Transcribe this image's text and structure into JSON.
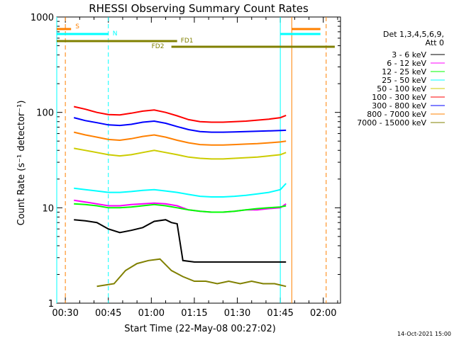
{
  "chart_data": {
    "type": "line",
    "title": "RHESSI Observing Summary Count Rates",
    "xlabel": "Start Time (22-May-08 00:27:02)",
    "ylabel": "Count Rate (s⁻¹ detector⁻¹)",
    "y_scale": "log",
    "ylim": [
      1,
      1000
    ],
    "xlim_minutes_from_start": [
      0,
      99
    ],
    "x_ticks": [
      {
        "label": "00:30",
        "minutes": 3
      },
      {
        "label": "00:45",
        "minutes": 18
      },
      {
        "label": "01:00",
        "minutes": 33
      },
      {
        "label": "01:15",
        "minutes": 48
      },
      {
        "label": "01:30",
        "minutes": 63
      },
      {
        "label": "01:45",
        "minutes": 78
      },
      {
        "label": "02:00",
        "minutes": 93
      }
    ],
    "y_ticks": [
      {
        "label": "1",
        "value": 1
      },
      {
        "label": "10",
        "value": 10
      },
      {
        "label": "100",
        "value": 100
      },
      {
        "label": "1000",
        "value": 1000
      }
    ],
    "legend_header": [
      "Det 1,3,4,5,6,9,",
      "Att 0"
    ],
    "legend_position": "right",
    "series": [
      {
        "name": "3 - 6 keV",
        "color": "#000000",
        "x": [
          6,
          10,
          14,
          18,
          22,
          26,
          30,
          34,
          38,
          40,
          42,
          44,
          48,
          52,
          56,
          60,
          64,
          68,
          72,
          76,
          78,
          80
        ],
        "y": [
          7.5,
          7.3,
          7.0,
          6.0,
          5.5,
          5.8,
          6.2,
          7.2,
          7.5,
          7.0,
          6.8,
          2.8,
          2.7,
          2.7,
          2.7,
          2.7,
          2.7,
          2.7,
          2.7,
          2.7,
          2.7,
          2.7
        ]
      },
      {
        "name": "6 - 12 keV",
        "color": "#ff00ff",
        "x": [
          6,
          10,
          14,
          18,
          22,
          26,
          30,
          34,
          38,
          42,
          46,
          50,
          54,
          58,
          62,
          66,
          70,
          74,
          78,
          80
        ],
        "y": [
          12,
          11.5,
          11,
          10.5,
          10.5,
          10.8,
          11,
          11.2,
          11,
          10.5,
          9.5,
          9.2,
          9.0,
          9.0,
          9.2,
          9.5,
          9.5,
          9.8,
          10,
          11
        ]
      },
      {
        "name": "12 - 25 keV",
        "color": "#00ff00",
        "x": [
          6,
          10,
          14,
          18,
          22,
          26,
          30,
          34,
          38,
          42,
          46,
          50,
          54,
          58,
          62,
          66,
          70,
          74,
          78,
          80
        ],
        "y": [
          11,
          10.8,
          10.5,
          10,
          10,
          10.2,
          10.5,
          10.8,
          10.5,
          10,
          9.5,
          9.2,
          9,
          9,
          9.2,
          9.5,
          9.8,
          10,
          10.2,
          10.5
        ]
      },
      {
        "name": "25 - 50 keV",
        "color": "#00ffff",
        "x": [
          6,
          10,
          14,
          18,
          22,
          26,
          30,
          34,
          38,
          42,
          46,
          50,
          54,
          58,
          62,
          66,
          70,
          74,
          78,
          80
        ],
        "y": [
          16,
          15.5,
          15,
          14.5,
          14.5,
          14.8,
          15.2,
          15.5,
          15,
          14.5,
          13.8,
          13.2,
          13,
          13,
          13.2,
          13.5,
          14,
          14.5,
          15.5,
          18
        ]
      },
      {
        "name": "50 - 100 keV",
        "color": "#cccc00",
        "x": [
          6,
          10,
          14,
          18,
          22,
          26,
          30,
          34,
          38,
          42,
          46,
          50,
          54,
          58,
          62,
          66,
          70,
          74,
          78,
          80
        ],
        "y": [
          42,
          40,
          38,
          36,
          35,
          36,
          38,
          40,
          38,
          36,
          34,
          33,
          32.5,
          32.5,
          33,
          33.5,
          34,
          35,
          36,
          38
        ]
      },
      {
        "name": "100 - 300 keV",
        "color": "#ff0000",
        "x": [
          6,
          10,
          14,
          18,
          22,
          26,
          30,
          34,
          38,
          42,
          46,
          50,
          54,
          58,
          62,
          66,
          70,
          74,
          78,
          80
        ],
        "y": [
          115,
          108,
          100,
          95,
          94,
          98,
          103,
          106,
          100,
          92,
          84,
          80,
          79,
          79,
          80,
          81,
          83,
          85,
          88,
          93
        ]
      },
      {
        "name": "300 - 800 keV",
        "color": "#0000ff",
        "x": [
          6,
          10,
          14,
          18,
          22,
          26,
          30,
          34,
          38,
          42,
          46,
          50,
          54,
          58,
          62,
          66,
          70,
          74,
          78,
          80
        ],
        "y": [
          88,
          82,
          78,
          74,
          73,
          75,
          79,
          81,
          77,
          71,
          66,
          63,
          62,
          62,
          62.5,
          63,
          63.5,
          64,
          64.5,
          65
        ]
      },
      {
        "name": "800 - 7000 keV",
        "color": "#ff8000",
        "x": [
          6,
          10,
          14,
          18,
          22,
          26,
          30,
          34,
          38,
          42,
          46,
          50,
          54,
          58,
          62,
          66,
          70,
          74,
          78,
          80
        ],
        "y": [
          62,
          58,
          55,
          52,
          51,
          53,
          56,
          58,
          55,
          51,
          48,
          46,
          45.5,
          45.5,
          46,
          46.5,
          47,
          48,
          49,
          50
        ]
      },
      {
        "name": "7000 - 15000 keV",
        "color": "#808000",
        "x": [
          14,
          20,
          24,
          28,
          32,
          36,
          40,
          44,
          48,
          52,
          56,
          60,
          64,
          68,
          72,
          76,
          80
        ],
        "y": [
          1.5,
          1.6,
          2.2,
          2.6,
          2.8,
          2.9,
          2.2,
          1.9,
          1.7,
          1.7,
          1.6,
          1.7,
          1.6,
          1.7,
          1.6,
          1.6,
          1.5
        ]
      }
    ],
    "annotations": {
      "segment_bars": [
        {
          "label": "S",
          "color": "#ff8000",
          "ranges_minutes": [
            [
              -1,
              5
            ],
            [
              82,
              92
            ]
          ]
        },
        {
          "label": "N",
          "color": "#00ffff",
          "ranges_minutes": [
            [
              -1,
              18
            ],
            [
              78,
              92
            ]
          ]
        },
        {
          "label": "FD1",
          "color": "#808000",
          "ranges_minutes": [
            [
              -1,
              42
            ]
          ]
        },
        {
          "label": "FD2",
          "color": "#808000",
          "ranges_minutes": [
            [
              40,
              97
            ]
          ]
        }
      ],
      "vertical_lines": [
        {
          "minutes": 0,
          "color": "#00ffff",
          "style": "solid"
        },
        {
          "minutes": 3,
          "color": "#ff8000",
          "style": "dashed"
        },
        {
          "minutes": 18,
          "color": "#00ffff",
          "style": "dashed"
        },
        {
          "minutes": 78,
          "color": "#00ffff",
          "style": "solid"
        },
        {
          "minutes": 82,
          "color": "#ff8000",
          "style": "solid"
        },
        {
          "minutes": 94,
          "color": "#ff8000",
          "style": "dashed"
        }
      ]
    },
    "footer_date": "14-Oct-2021 15:00"
  }
}
